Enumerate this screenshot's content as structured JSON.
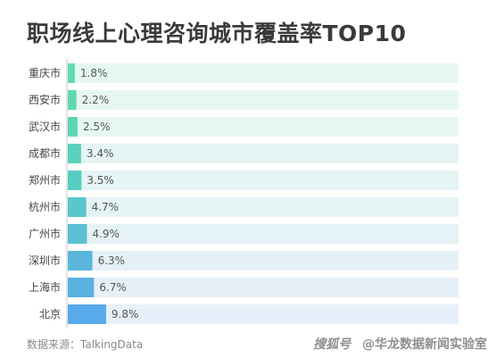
{
  "title": "职场线上心理咨询城市覆盖率TOP10",
  "footer": {
    "source": "数据来源：TalkingData",
    "brand_logo": "搜狐号",
    "brand_name": "@华龙数据新闻实验室"
  },
  "chart_data": {
    "type": "bar",
    "orientation": "horizontal",
    "title": "职场线上心理咨询城市覆盖率TOP10",
    "xlabel": "",
    "ylabel": "",
    "xlim": [
      0,
      100
    ],
    "categories": [
      "重庆市",
      "西安市",
      "武汉市",
      "成都市",
      "郑州市",
      "杭州市",
      "广州市",
      "深圳市",
      "上海市",
      "北京"
    ],
    "values": [
      1.8,
      2.2,
      2.5,
      3.4,
      3.5,
      4.7,
      4.9,
      6.3,
      6.7,
      9.8
    ],
    "value_labels": [
      "1.8%",
      "2.2%",
      "2.5%",
      "3.4%",
      "3.5%",
      "4.7%",
      "4.9%",
      "6.3%",
      "6.7%",
      "9.8%"
    ],
    "bar_colors": [
      "#62dcae",
      "#5fd8b0",
      "#5dd5b3",
      "#5bd1bb",
      "#5acdc3",
      "#5ac6cd",
      "#5ac0d2",
      "#5ab7db",
      "#5ab0e1",
      "#58aaea"
    ],
    "track_colors": [
      "#e6f7f0",
      "#e6f7f1",
      "#e6f6f2",
      "#e5f5f3",
      "#e5f4f4",
      "#e5f3f5",
      "#e5f2f6",
      "#e5f1f7",
      "#e6f0f8",
      "#e7f0fa"
    ],
    "grid": false,
    "legend": "none"
  }
}
